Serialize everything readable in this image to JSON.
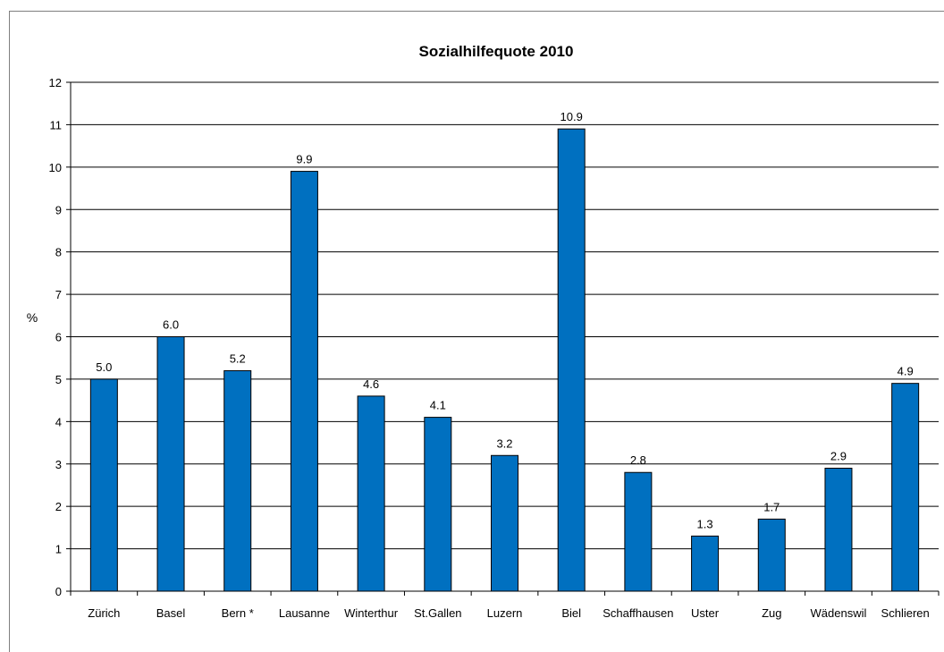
{
  "chart_data": {
    "type": "bar",
    "title": "Sozialhilfequote 2010",
    "xlabel": "",
    "ylabel": "%",
    "ylim": [
      0,
      12
    ],
    "yticks": [
      "0",
      "1",
      "2",
      "3",
      "4",
      "5",
      "6",
      "7",
      "8",
      "9",
      "10",
      "11",
      "12"
    ],
    "grid": true,
    "legend": "none",
    "bar_color": "#0070C0",
    "categories": [
      "Zürich",
      "Basel",
      "Bern *",
      "Lausanne",
      "Winterthur",
      "St.Gallen",
      "Luzern",
      "Biel",
      "Schaffhausen",
      "Uster",
      "Zug",
      "Wädenswil",
      "Schlieren"
    ],
    "values": [
      5.0,
      6.0,
      5.2,
      9.9,
      4.6,
      4.1,
      3.2,
      10.9,
      2.8,
      1.3,
      1.7,
      2.9,
      4.9
    ],
    "data_labels": [
      "5.0",
      "6.0",
      "5.2",
      "9.9",
      "4.6",
      "4.1",
      "3.2",
      "10.9",
      "2.8",
      "1.3",
      "1.7",
      "2.9",
      "4.9"
    ]
  }
}
